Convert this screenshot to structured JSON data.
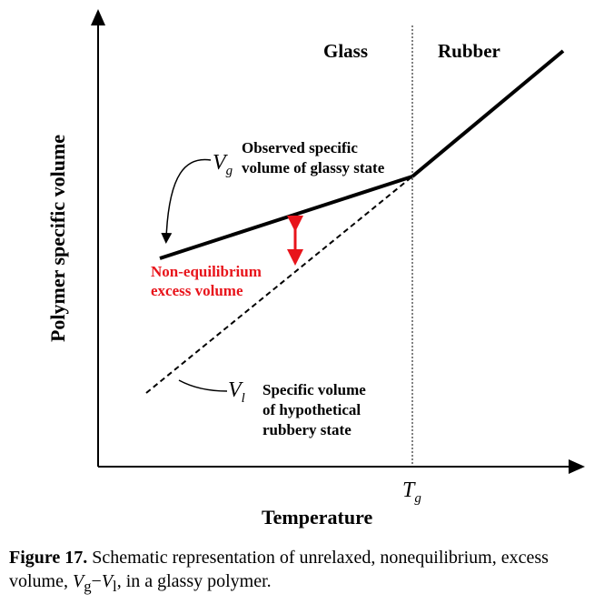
{
  "diagram": {
    "region_left": "Glass",
    "region_right": "Rubber",
    "y_axis_label": "Polymer specific volume",
    "x_axis_label": "Temperature",
    "tg": {
      "symbol": "T",
      "sub": "g"
    },
    "vg": {
      "symbol": "V",
      "sub": "g",
      "line1": "Observed specific",
      "line2": "volume of glassy state"
    },
    "vl": {
      "symbol": "V",
      "sub": "l",
      "line1": "Specific volume",
      "line2": "of hypothetical",
      "line3": "rubbery state"
    },
    "excess": {
      "line1": "Non-equilibrium",
      "line2": "excess volume",
      "color": "#e8141b"
    }
  },
  "caption": {
    "label": "Figure 17.",
    "text_a": " Schematic representation of unrelaxed, nonequilibrium, excess volume, ",
    "vg_symbol": "V",
    "vg_sub": "g",
    "minus": "−",
    "vl_symbol": "V",
    "vl_sub": "l",
    "text_b": ", in a glassy polymer."
  }
}
